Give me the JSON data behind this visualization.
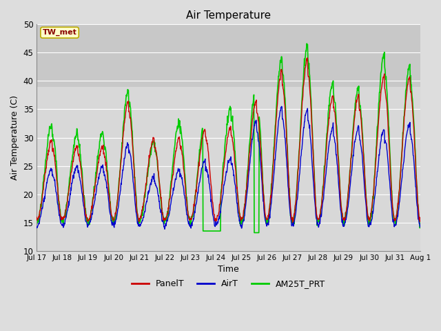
{
  "title": "Air Temperature",
  "xlabel": "Time",
  "ylabel": "Air Temperature (C)",
  "ylim": [
    10,
    50
  ],
  "background_color": "#dddddd",
  "plot_bg_lower": "#d8d8d8",
  "plot_bg_upper": "#c8c8c8",
  "upper_band_threshold": 39.0,
  "grid_color": "white",
  "label_box_text": "TW_met",
  "label_box_facecolor": "#ffffcc",
  "label_box_edgecolor": "#bbaa00",
  "label_box_textcolor": "#880000",
  "tick_labels": [
    "Jul 17",
    "Jul 18",
    "Jul 19",
    "Jul 20",
    "Jul 21",
    "Jul 22",
    "Jul 23",
    "Jul 24",
    "Jul 25",
    "Jul 26",
    "Jul 27",
    "Jul 28",
    "Jul 29",
    "Jul 30",
    "Jul 31",
    "Aug 1"
  ],
  "yticks": [
    10,
    15,
    20,
    25,
    30,
    35,
    40,
    45,
    50
  ],
  "series": [
    {
      "name": "PanelT",
      "color": "#cc0000",
      "lw": 1.0,
      "zorder": 4
    },
    {
      "name": "AirT",
      "color": "#0000cc",
      "lw": 1.0,
      "zorder": 3
    },
    {
      "name": "AM25T_PRT",
      "color": "#00cc00",
      "lw": 1.2,
      "zorder": 2
    }
  ]
}
